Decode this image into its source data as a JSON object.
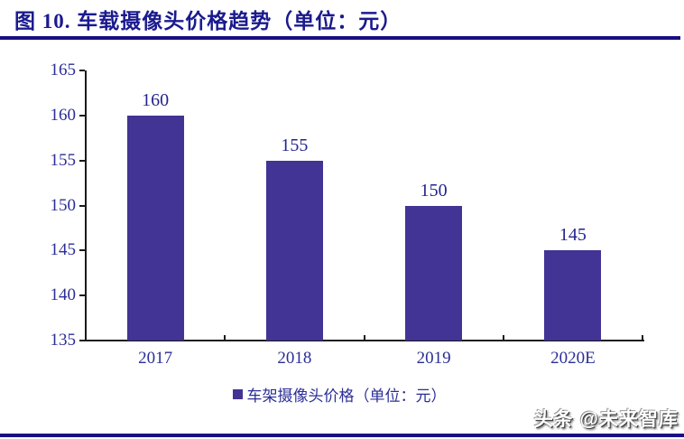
{
  "title": "图 10. 车载摄像头价格趋势（单位：元）",
  "watermark": "头条 @未来智库",
  "colors": {
    "bar": "#413494",
    "title_text": "#1a1a8f",
    "axis_text": "#2b2e96",
    "data_label_text": "#23238f",
    "title_rule": "#190f80",
    "bottom_rule": "#191086",
    "axis_line": "#1a1a1a"
  },
  "chart_data": {
    "type": "bar",
    "title": "图 10. 车载摄像头价格趋势（单位：元）",
    "categories": [
      "2017",
      "2018",
      "2019",
      "2020E"
    ],
    "values": [
      160,
      155,
      150,
      145
    ],
    "data_labels": [
      "160",
      "155",
      "150",
      "145"
    ],
    "legend": "车架摄像头价格（单位：元）",
    "legend_position": "bottom",
    "ylim": [
      135,
      165
    ],
    "ytick_step": 5,
    "ytick_labels": [
      "165",
      "160",
      "155",
      "150",
      "145",
      "140",
      "135"
    ],
    "grid": false,
    "xlabel": "",
    "ylabel": ""
  }
}
